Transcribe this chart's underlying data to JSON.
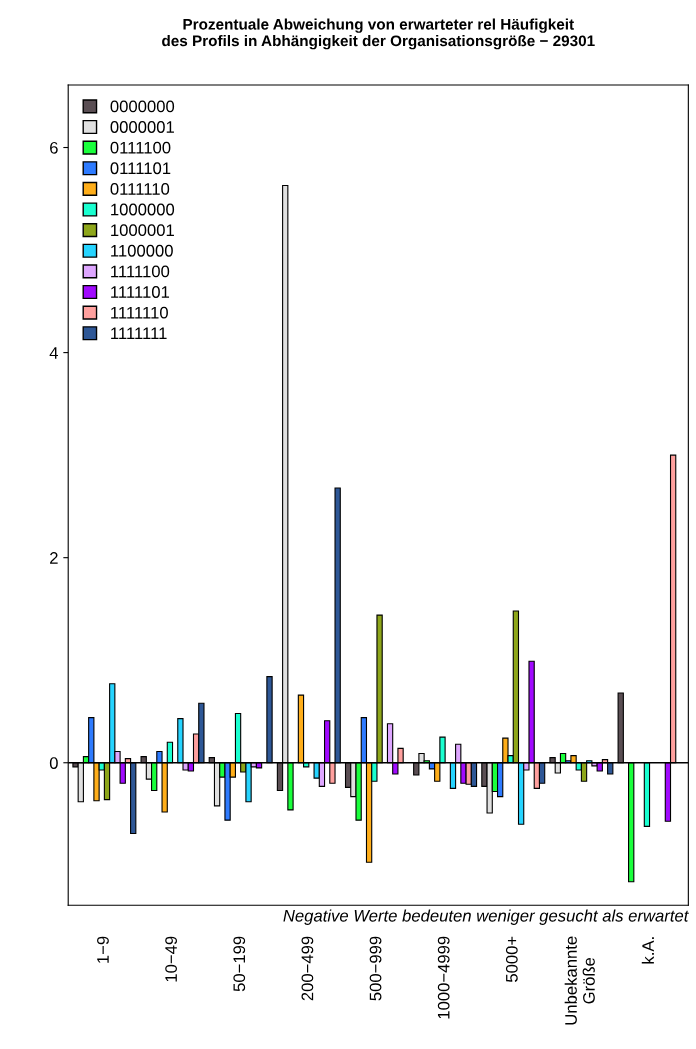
{
  "chart_data": {
    "type": "bar",
    "title": "Prozentuale Abweichung von erwarteter rel Häufigkeit\ndes Profils in Abhängigkeit der Organisationsgröße − 29301",
    "categories": [
      "1−9",
      "10−49",
      "50−199",
      "200−499",
      "500−999",
      "1000−4999",
      "5000+",
      "Unbekannte\nGröße",
      "k.A."
    ],
    "series": [
      {
        "name": "0000000",
        "color": "#5a4e53",
        "values": [
          -0.04,
          0.06,
          0.05,
          -0.27,
          -0.24,
          -0.12,
          -0.23,
          0.05,
          0.68
        ]
      },
      {
        "name": "0000001",
        "color": "#e0e0e0",
        "values": [
          -0.38,
          -0.16,
          -0.42,
          5.63,
          -0.33,
          0.09,
          -0.49,
          -0.1,
          null
        ]
      },
      {
        "name": "0111100",
        "color": "#1aff3c",
        "values": [
          0.06,
          -0.27,
          -0.14,
          -0.46,
          -0.56,
          0.02,
          -0.28,
          0.09,
          -1.16
        ]
      },
      {
        "name": "0111101",
        "color": "#2e7bff",
        "values": [
          0.44,
          0.11,
          -0.56,
          null,
          0.44,
          -0.06,
          -0.33,
          0.02,
          null
        ]
      },
      {
        "name": "0111110",
        "color": "#ffae1a",
        "values": [
          -0.37,
          -0.48,
          -0.14,
          0.66,
          -0.97,
          -0.18,
          0.24,
          0.07,
          null
        ]
      },
      {
        "name": "1000000",
        "color": "#1affd0",
        "values": [
          -0.07,
          0.2,
          0.48,
          -0.04,
          -0.18,
          0.25,
          0.07,
          -0.07,
          -0.62
        ]
      },
      {
        "name": "1000001",
        "color": "#8ea61a",
        "values": [
          -0.36,
          null,
          -0.09,
          null,
          1.44,
          null,
          1.48,
          -0.18,
          null
        ]
      },
      {
        "name": "1100000",
        "color": "#26d4ff",
        "values": [
          0.77,
          0.43,
          -0.38,
          -0.15,
          null,
          -0.25,
          -0.6,
          0.02,
          null
        ]
      },
      {
        "name": "1111100",
        "color": "#dea6ff",
        "values": [
          0.11,
          -0.07,
          -0.04,
          -0.23,
          0.38,
          0.18,
          -0.07,
          -0.03,
          null
        ]
      },
      {
        "name": "1111101",
        "color": "#a10aff",
        "values": [
          -0.2,
          -0.08,
          -0.05,
          0.41,
          -0.11,
          -0.2,
          0.99,
          -0.08,
          -0.57
        ]
      },
      {
        "name": "1111110",
        "color": "#ffa09e",
        "values": [
          0.04,
          0.28,
          null,
          -0.2,
          0.14,
          -0.21,
          -0.25,
          0.03,
          3.0
        ]
      },
      {
        "name": "1111111",
        "color": "#2e5796",
        "values": [
          -0.69,
          0.58,
          0.84,
          2.68,
          null,
          -0.23,
          -0.2,
          -0.11,
          null
        ]
      }
    ],
    "ylim": [
      -1.39,
      6.61
    ],
    "yticks": [
      0,
      2,
      4,
      6
    ],
    "ref_lines": [
      {
        "axis": "y",
        "value": 0,
        "color": "#000000"
      }
    ],
    "annotations": [
      "Negative Werte bedeuten weniger gesucht als erwartet"
    ],
    "legend": "top left",
    "grid": false
  }
}
